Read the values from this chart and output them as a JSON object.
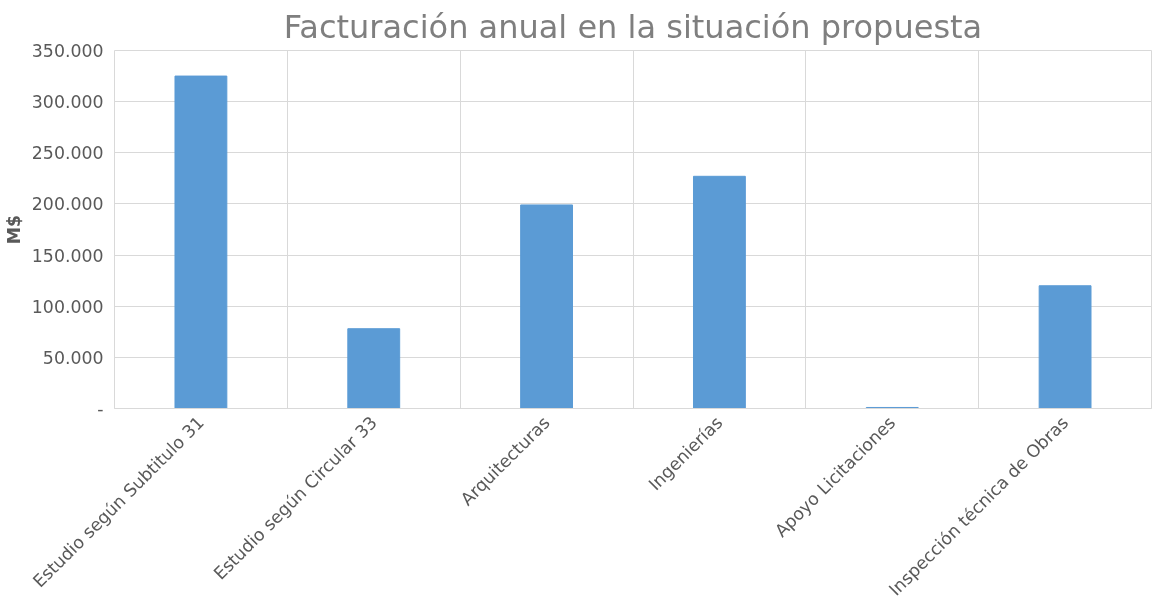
{
  "chart_data": {
    "type": "bar",
    "title": "Facturación anual en la situación propuesta",
    "ylabel": "M$",
    "categories": [
      "Estudio según Subtitulo 31",
      "Estudio según Circular 33",
      "Arquitecturas",
      "Ingenierías",
      "Apoyo Licitaciones",
      "Inspección técnica de Obras"
    ],
    "values": [
      325000,
      78000,
      199000,
      227000,
      1000,
      120000
    ],
    "color": "#5b9bd5",
    "ylim": [
      0,
      350000
    ],
    "yticks": [
      {
        "value": 0,
        "label": "-"
      },
      {
        "value": 50000,
        "label": "50.000"
      },
      {
        "value": 100000,
        "label": "100.000"
      },
      {
        "value": 150000,
        "label": "150.000"
      },
      {
        "value": 200000,
        "label": "200.000"
      },
      {
        "value": 250000,
        "label": "250.000"
      },
      {
        "value": 300000,
        "label": "300.000"
      },
      {
        "value": 350000,
        "label": "350.000"
      }
    ],
    "grid": true
  }
}
